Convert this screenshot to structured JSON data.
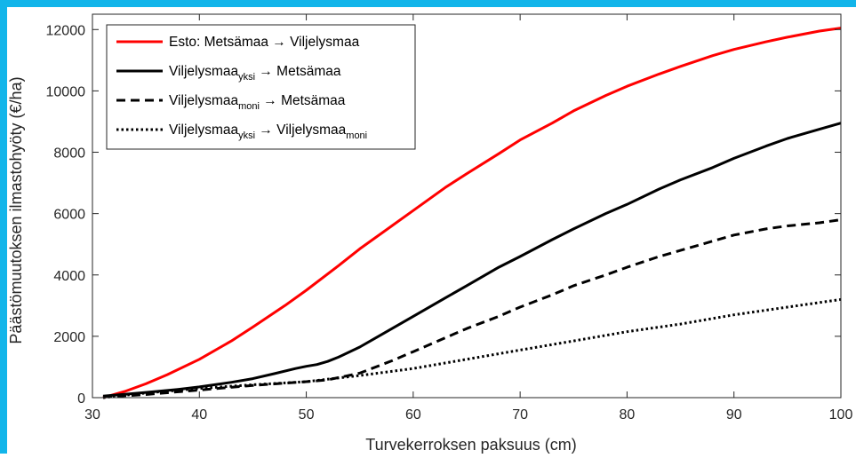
{
  "chart_data": {
    "type": "line",
    "title": "",
    "xlabel": "Turvekerroksen paksuus (cm)",
    "ylabel": "Päästömuutoksen ilmastohyöty (€/ha)",
    "xlim": [
      30,
      100
    ],
    "ylim": [
      0,
      12500
    ],
    "xticks": [
      "30",
      "40",
      "50",
      "60",
      "70",
      "80",
      "90",
      "100"
    ],
    "yticks": [
      "0",
      "2000",
      "4000",
      "6000",
      "8000",
      "10000",
      "12000"
    ],
    "grid": false,
    "legend_position": "top-left",
    "series": [
      {
        "id": "s1",
        "legend": {
          "main": "Esto: Metsämaa → Viljelysmaa"
        },
        "color": "#ff0000",
        "style": "solid",
        "x": [
          31,
          33,
          35,
          37,
          40,
          43,
          45,
          48,
          50,
          53,
          55,
          58,
          60,
          63,
          65,
          68,
          70,
          73,
          75,
          78,
          80,
          83,
          85,
          88,
          90,
          93,
          95,
          98,
          100
        ],
        "y": [
          0,
          200,
          450,
          750,
          1250,
          1850,
          2300,
          3000,
          3500,
          4300,
          4850,
          5600,
          6100,
          6850,
          7300,
          7950,
          8400,
          8950,
          9350,
          9850,
          10150,
          10550,
          10800,
          11150,
          11350,
          11600,
          11750,
          11950,
          12050
        ]
      },
      {
        "id": "s2",
        "legend": {
          "pre": "Viljelysmaa",
          "sub": "yksi",
          "post": " → Metsämaa"
        },
        "color": "#000000",
        "style": "solid",
        "x": [
          31,
          33,
          35,
          38,
          40,
          43,
          45,
          47,
          49,
          50,
          51,
          52,
          53,
          55,
          57,
          60,
          63,
          65,
          68,
          70,
          73,
          75,
          78,
          80,
          83,
          85,
          88,
          90,
          93,
          95,
          98,
          100
        ],
        "y": [
          50,
          110,
          170,
          270,
          350,
          500,
          620,
          780,
          950,
          1020,
          1080,
          1180,
          1320,
          1650,
          2050,
          2650,
          3250,
          3650,
          4250,
          4600,
          5150,
          5500,
          6000,
          6300,
          6800,
          7100,
          7500,
          7800,
          8200,
          8450,
          8750,
          8950
        ]
      },
      {
        "id": "s3",
        "legend": {
          "pre": "Viljelysmaa",
          "sub": "moni",
          "post": " → Metsämaa"
        },
        "color": "#000000",
        "style": "dashed",
        "x": [
          31,
          35,
          40,
          45,
          50,
          52,
          55,
          58,
          60,
          63,
          65,
          68,
          70,
          73,
          75,
          78,
          80,
          83,
          85,
          88,
          90,
          93,
          95,
          98,
          100
        ],
        "y": [
          20,
          100,
          250,
          400,
          520,
          580,
          800,
          1200,
          1500,
          1950,
          2250,
          2650,
          2950,
          3350,
          3650,
          4000,
          4250,
          4600,
          4800,
          5100,
          5300,
          5500,
          5600,
          5700,
          5800
        ]
      },
      {
        "id": "s4",
        "legend": {
          "pre": "Viljelysmaa",
          "sub": "yksi",
          "post": " → Viljelysmaa",
          "sub2": "moni"
        },
        "color": "#000000",
        "style": "dotted",
        "x": [
          31,
          35,
          40,
          45,
          50,
          55,
          60,
          65,
          70,
          75,
          80,
          85,
          90,
          95,
          100
        ],
        "y": [
          0,
          150,
          300,
          420,
          520,
          720,
          950,
          1250,
          1550,
          1850,
          2150,
          2400,
          2700,
          2950,
          3200
        ]
      }
    ]
  }
}
